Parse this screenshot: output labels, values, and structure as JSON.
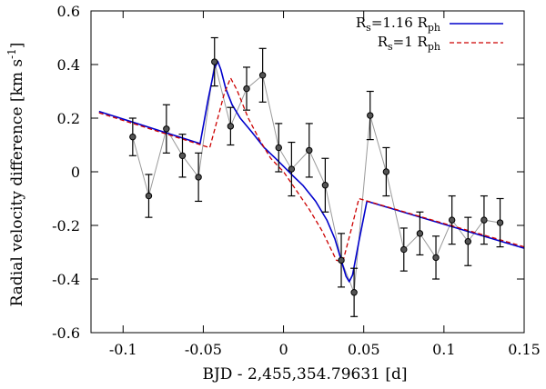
{
  "chart_data": {
    "type": "line",
    "title": "",
    "xlabel": "BJD - 2,455,354.79631 [d]",
    "ylabel_main": "Radial velocity difference [km s",
    "ylabel_sup": "-1",
    "ylabel_close": "]",
    "xlim": [
      -0.12,
      0.15
    ],
    "ylim": [
      -0.6,
      0.6
    ],
    "xticks": [
      -0.1,
      -0.05,
      0,
      0.05,
      0.1,
      0.15
    ],
    "xtick_labels": [
      "-0.1",
      "-0.05",
      "0",
      "0.05",
      "0.1",
      "0.15"
    ],
    "yticks": [
      -0.6,
      -0.4,
      -0.2,
      0,
      0.2,
      0.4,
      0.6
    ],
    "ytick_labels": [
      "-0.6",
      "-0.4",
      "-0.2",
      "0",
      "0.2",
      "0.4",
      "0.6"
    ],
    "grid": false,
    "legend_position": "top-right",
    "colors": {
      "observed": "#000000",
      "connector": "#9a9a9a",
      "model_1": "#0000cc",
      "model_2": "#cc0000",
      "point_fill": "#555555"
    },
    "observed": {
      "x": [
        -0.094,
        -0.084,
        -0.073,
        -0.063,
        -0.053,
        -0.043,
        -0.033,
        -0.023,
        -0.013,
        -0.003,
        0.005,
        0.016,
        0.026,
        0.036,
        0.044,
        0.054,
        0.064,
        0.075,
        0.085,
        0.095,
        0.105,
        0.115,
        0.125,
        0.135
      ],
      "y": [
        0.13,
        -0.09,
        0.16,
        0.06,
        -0.02,
        0.41,
        0.17,
        0.31,
        0.36,
        0.09,
        0.01,
        0.08,
        -0.05,
        -0.33,
        -0.45,
        0.21,
        0.0,
        -0.29,
        -0.23,
        -0.32,
        -0.18,
        -0.26,
        -0.18,
        -0.19
      ],
      "err": [
        0.07,
        0.08,
        0.09,
        0.08,
        0.09,
        0.09,
        0.07,
        0.08,
        0.1,
        0.09,
        0.1,
        0.1,
        0.1,
        0.1,
        0.09,
        0.09,
        0.09,
        0.08,
        0.08,
        0.08,
        0.09,
        0.09,
        0.09,
        0.09
      ]
    },
    "series": [
      {
        "name": "Rs=1.16 Rph",
        "legend_main": "R",
        "legend_sub": "s",
        "legend_mid": "=1.16 R",
        "legend_sub2": "ph",
        "style": "solid",
        "x": [
          -0.115,
          -0.052,
          -0.047,
          -0.043,
          -0.041,
          -0.039,
          -0.036,
          -0.032,
          -0.027,
          -0.02,
          -0.012,
          -0.005,
          0.0,
          0.005,
          0.012,
          0.02,
          0.027,
          0.032,
          0.036,
          0.039,
          0.041,
          0.043,
          0.047,
          0.052,
          0.15
        ],
        "y": [
          0.225,
          0.105,
          0.27,
          0.385,
          0.412,
          0.38,
          0.31,
          0.25,
          0.2,
          0.15,
          0.09,
          0.05,
          0.02,
          -0.01,
          -0.05,
          -0.11,
          -0.18,
          -0.25,
          -0.33,
          -0.39,
          -0.41,
          -0.385,
          -0.26,
          -0.11,
          -0.285
        ]
      },
      {
        "name": "Rs=1 Rph",
        "legend_main": "R",
        "legend_sub": "s",
        "legend_mid": "=1 R",
        "legend_sub2": "ph",
        "style": "dashed",
        "x": [
          -0.115,
          -0.046,
          -0.041,
          -0.037,
          -0.033,
          -0.029,
          -0.022,
          -0.015,
          -0.008,
          0.0,
          0.008,
          0.016,
          0.024,
          0.033,
          0.037,
          0.042,
          0.047,
          0.15
        ],
        "y": [
          0.22,
          0.09,
          0.2,
          0.29,
          0.35,
          0.305,
          0.2,
          0.12,
          0.05,
          0.0,
          -0.07,
          -0.14,
          -0.22,
          -0.33,
          -0.335,
          -0.22,
          -0.1,
          -0.28
        ]
      }
    ]
  }
}
